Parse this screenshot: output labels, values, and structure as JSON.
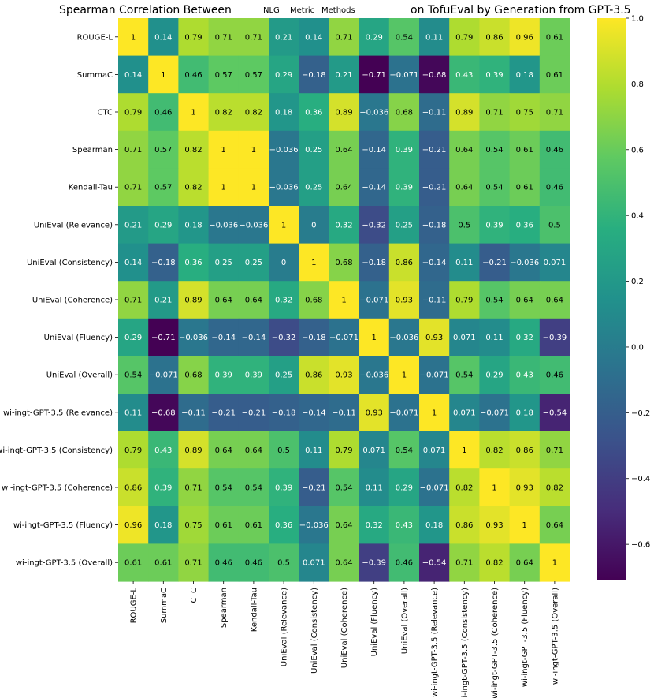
{
  "chart_data": {
    "type": "heatmap",
    "title_parts": [
      "Spearman Correlation Between",
      "NLG",
      "Metric",
      "Methods",
      "on TofuEval by Generation from GPT-3.5"
    ],
    "labels": [
      "ROUGE-L",
      "SummaC",
      "CTC",
      "Spearman",
      "Kendall-Tau",
      "UniEval (Relevance)",
      "UniEval (Consistency)",
      "UniEval (Coherence)",
      "UniEval (Fluency)",
      "UniEval (Overall)",
      "wi-ingt-GPT-3.5 (Relevance)",
      "wi-ingt-GPT-3.5 (Consistency)",
      "wi-ingt-GPT-3.5 (Coherence)",
      "wi-ingt-GPT-3.5 (Fluency)",
      "wi-ingt-GPT-3.5 (Overall)"
    ],
    "matrix": [
      [
        1,
        0.14,
        0.79,
        0.71,
        0.71,
        0.21,
        0.14,
        0.71,
        0.29,
        0.54,
        0.11,
        0.79,
        0.86,
        0.96,
        0.61
      ],
      [
        0.14,
        1,
        0.46,
        0.57,
        0.57,
        0.29,
        -0.18,
        0.21,
        -0.71,
        -0.071,
        -0.68,
        0.43,
        0.39,
        0.18,
        0.61
      ],
      [
        0.79,
        0.46,
        1,
        0.82,
        0.82,
        0.18,
        0.36,
        0.89,
        -0.036,
        0.68,
        -0.11,
        0.89,
        0.71,
        0.75,
        0.71
      ],
      [
        0.71,
        0.57,
        0.82,
        1,
        1,
        -0.036,
        0.25,
        0.64,
        -0.14,
        0.39,
        -0.21,
        0.64,
        0.54,
        0.61,
        0.46
      ],
      [
        0.71,
        0.57,
        0.82,
        1,
        1,
        -0.036,
        0.25,
        0.64,
        -0.14,
        0.39,
        -0.21,
        0.64,
        0.54,
        0.61,
        0.46
      ],
      [
        0.21,
        0.29,
        0.18,
        -0.036,
        -0.036,
        1,
        0,
        0.32,
        -0.32,
        0.25,
        -0.18,
        0.5,
        0.39,
        0.36,
        0.5
      ],
      [
        0.14,
        -0.18,
        0.36,
        0.25,
        0.25,
        0,
        1,
        0.68,
        -0.18,
        0.86,
        -0.14,
        0.11,
        -0.21,
        -0.036,
        0.071
      ],
      [
        0.71,
        0.21,
        0.89,
        0.64,
        0.64,
        0.32,
        0.68,
        1,
        -0.071,
        0.93,
        -0.11,
        0.79,
        0.54,
        0.64,
        0.64
      ],
      [
        0.29,
        -0.71,
        -0.036,
        -0.14,
        -0.14,
        -0.32,
        -0.18,
        -0.071,
        1,
        -0.036,
        0.93,
        0.071,
        0.11,
        0.32,
        -0.39
      ],
      [
        0.54,
        -0.071,
        0.68,
        0.39,
        0.39,
        0.25,
        0.86,
        0.93,
        -0.036,
        1,
        -0.071,
        0.54,
        0.29,
        0.43,
        0.46
      ],
      [
        0.11,
        -0.68,
        -0.11,
        -0.21,
        -0.21,
        -0.18,
        -0.14,
        -0.11,
        0.93,
        -0.071,
        1,
        0.071,
        -0.071,
        0.18,
        -0.54
      ],
      [
        0.79,
        0.43,
        0.89,
        0.64,
        0.64,
        0.5,
        0.11,
        0.79,
        0.071,
        0.54,
        0.071,
        1,
        0.82,
        0.86,
        0.71
      ],
      [
        0.86,
        0.39,
        0.71,
        0.54,
        0.54,
        0.39,
        -0.21,
        0.54,
        0.11,
        0.29,
        -0.071,
        0.82,
        1,
        0.93,
        0.82
      ],
      [
        0.96,
        0.18,
        0.75,
        0.61,
        0.61,
        0.36,
        -0.036,
        0.64,
        0.32,
        0.43,
        0.18,
        0.86,
        0.93,
        1,
        0.64
      ],
      [
        0.61,
        0.61,
        0.71,
        0.46,
        0.46,
        0.5,
        0.071,
        0.64,
        -0.39,
        0.46,
        -0.54,
        0.71,
        0.82,
        0.64,
        1
      ]
    ],
    "vmin": -0.71,
    "vmax": 1.0,
    "colormap": "viridis",
    "colorbar_ticks": [
      1.0,
      0.8,
      0.6,
      0.4,
      0.2,
      0.0,
      -0.2,
      -0.4,
      -0.6
    ],
    "colorbar_tick_labels": [
      "1.0",
      "0.8",
      "0.6",
      "0.4",
      "0.2",
      "0.0",
      "−0.2",
      "−0.4",
      "−0.6"
    ]
  }
}
